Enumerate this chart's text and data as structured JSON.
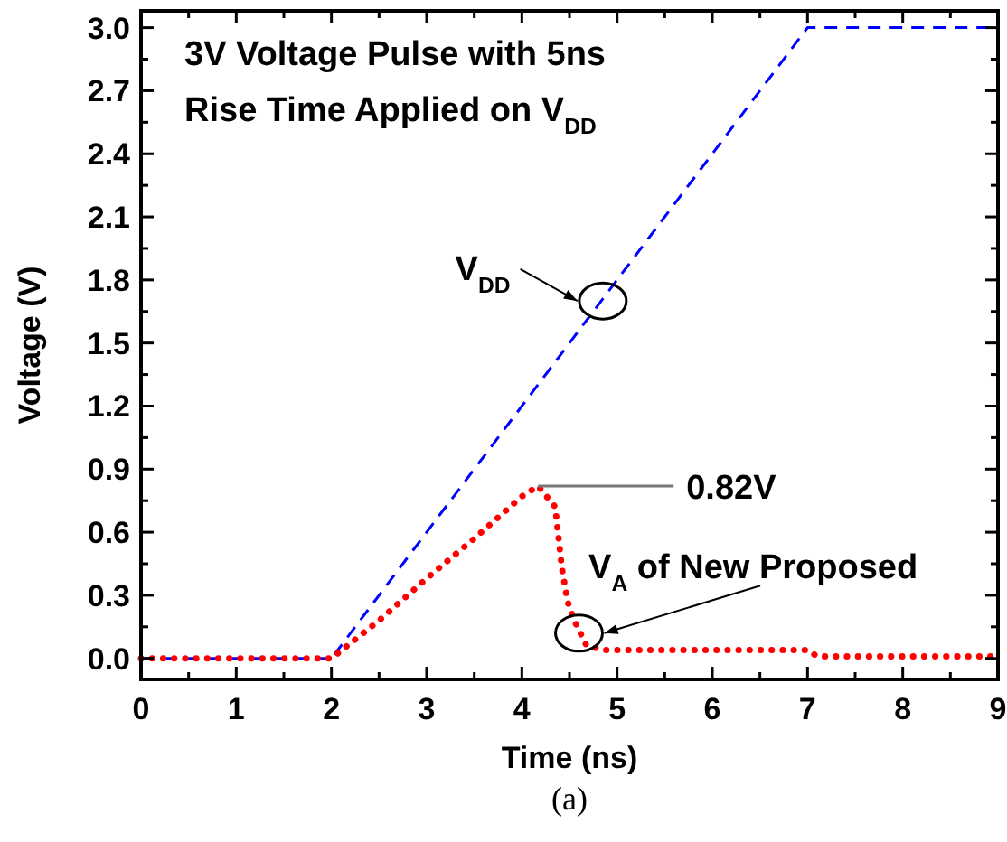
{
  "chart_data": {
    "type": "line",
    "title": "3V Voltage Pulse with 5ns\nRise Time Applied on V$_{DD}$",
    "xlabel": "Time (ns)",
    "ylabel": "Voltage (V)",
    "xlim": [
      0,
      9
    ],
    "ylim": [
      -0.1,
      3.08
    ],
    "xticks": [
      0,
      {
        "value": 0.5,
        "label": null
      },
      1,
      {
        "value": 1.5,
        "label": null
      },
      2,
      {
        "value": 2.5,
        "label": null
      },
      3,
      {
        "value": 3.5,
        "label": null
      },
      4,
      {
        "value": 4.5,
        "label": null
      },
      5,
      {
        "value": 5.5,
        "label": null
      },
      6,
      {
        "value": 6.5,
        "label": null
      },
      7,
      {
        "value": 7.5,
        "label": null
      },
      8,
      {
        "value": 8.5,
        "label": null
      },
      9
    ],
    "yticks": [
      {
        "value": 0,
        "label": "0.0"
      },
      {
        "value": 0.15,
        "label": null
      },
      {
        "value": 0.3,
        "label": "0.3"
      },
      {
        "value": 0.45,
        "label": null
      },
      {
        "value": 0.6,
        "label": "0.6"
      },
      {
        "value": 0.75,
        "label": null
      },
      {
        "value": 0.9,
        "label": "0.9"
      },
      {
        "value": 1.05,
        "label": null
      },
      {
        "value": 1.2,
        "label": "1.2"
      },
      {
        "value": 1.35,
        "label": null
      },
      {
        "value": 1.5,
        "label": "1.5"
      },
      {
        "value": 1.65,
        "label": null
      },
      {
        "value": 1.8,
        "label": "1.8"
      },
      {
        "value": 1.95,
        "label": null
      },
      {
        "value": 2.1,
        "label": "2.1"
      },
      {
        "value": 2.25,
        "label": null
      },
      {
        "value": 2.4,
        "label": "2.4"
      },
      {
        "value": 2.55,
        "label": null
      },
      {
        "value": 2.7,
        "label": "2.7"
      },
      {
        "value": 2.85,
        "label": null
      },
      {
        "value": 3.0,
        "label": "3.0"
      }
    ],
    "grid": false,
    "series": [
      {
        "color": "#0000ff",
        "line_style": "dashed",
        "x": [
          0,
          2,
          7,
          9
        ],
        "values": [
          0,
          0,
          3.0,
          3.0
        ]
      },
      {
        "color": "#ff0000",
        "line_style": "dotted",
        "x": [
          0,
          2,
          2.5,
          3,
          3.5,
          4,
          4.17,
          4.35,
          4.42,
          4.48,
          4.55,
          4.68,
          4.87,
          5,
          7,
          7.1,
          9
        ],
        "values": [
          0,
          0,
          0.18,
          0.38,
          0.57,
          0.77,
          0.82,
          0.72,
          0.43,
          0.27,
          0.18,
          0.06,
          0.04,
          0.04,
          0.04,
          0.01,
          0.01
        ]
      }
    ],
    "annotations": [
      {
        "text": "0.82V",
        "x": 4.17,
        "y": 0.82
      },
      {
        "text": "V$_{DD}$",
        "x": 4.85,
        "y": 1.7
      },
      {
        "text": "V$_{A}$ of New Proposed",
        "x": 4.6,
        "y": 0.12
      },
      "(a)"
    ]
  }
}
